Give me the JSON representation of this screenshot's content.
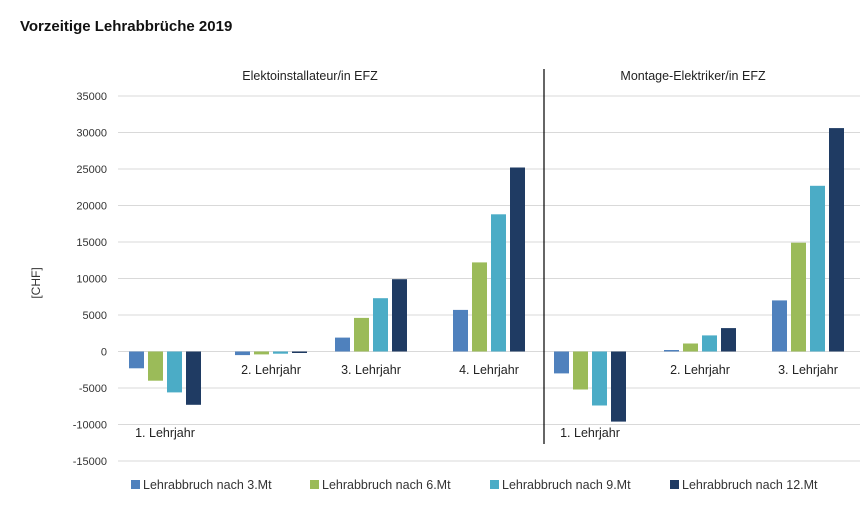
{
  "chart_data": {
    "type": "bar",
    "title": "Vorzeitige Lehrabbrüche 2019",
    "ylabel": "[CHF]",
    "ylim": [
      -15000,
      35000
    ],
    "yticks": [
      "35000",
      "30000",
      "25000",
      "20000",
      "15000",
      "10000",
      "5000",
      "0",
      "-5000",
      "-10000",
      "-15000"
    ],
    "grid": true,
    "legend_position": "bottom",
    "colors": [
      "#4f81bd",
      "#9bbb59",
      "#4bacc6",
      "#1f3b63"
    ],
    "series_names": [
      "Lehrabbruch nach 3.Mt",
      "Lehrabbruch nach 6.Mt",
      "Lehrabbruch nach 9.Mt",
      "Lehrabbruch nach 12.Mt"
    ],
    "panels": [
      {
        "title": "Elektoinstallateur/in EFZ",
        "categories": [
          "1. Lehrjahr",
          "2. Lehrjahr",
          "3. Lehrjahr",
          "4. Lehrjahr"
        ],
        "series": [
          {
            "name": "Lehrabbruch nach 3.Mt",
            "values": [
              -2300,
              -500,
              1900,
              5700
            ]
          },
          {
            "name": "Lehrabbruch nach 6.Mt",
            "values": [
              -4000,
              -400,
              4600,
              12200
            ]
          },
          {
            "name": "Lehrabbruch nach 9.Mt",
            "values": [
              -5600,
              -300,
              7300,
              18800
            ]
          },
          {
            "name": "Lehrabbruch nach 12.Mt",
            "values": [
              -7300,
              -200,
              9900,
              25200
            ]
          }
        ]
      },
      {
        "title": "Montage-Elektriker/in EFZ",
        "categories": [
          "1. Lehrjahr",
          "2. Lehrjahr",
          "3. Lehrjahr"
        ],
        "series": [
          {
            "name": "Lehrabbruch nach 3.Mt",
            "values": [
              -3000,
              200,
              7000
            ]
          },
          {
            "name": "Lehrabbruch nach 6.Mt",
            "values": [
              -5200,
              1100,
              14900
            ]
          },
          {
            "name": "Lehrabbruch nach 9.Mt",
            "values": [
              -7400,
              2200,
              22700
            ]
          },
          {
            "name": "Lehrabbruch nach 12.Mt",
            "values": [
              -9600,
              3200,
              30600
            ]
          }
        ]
      }
    ]
  }
}
